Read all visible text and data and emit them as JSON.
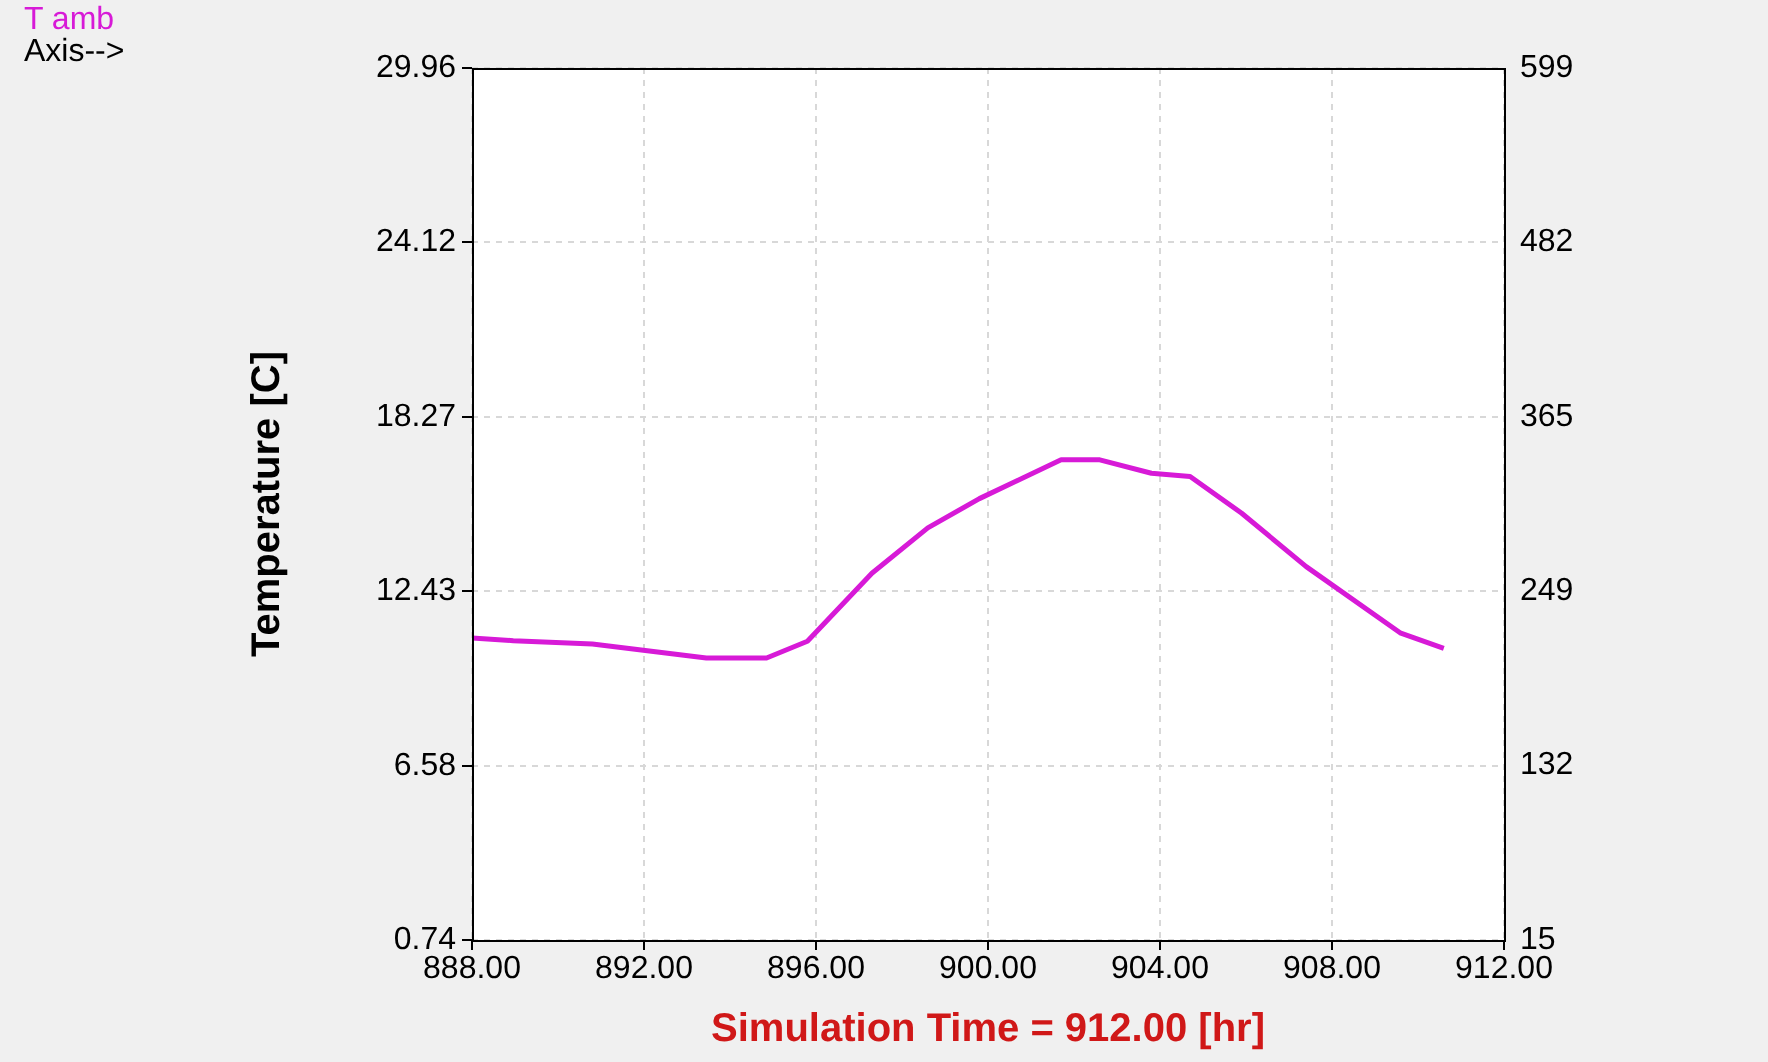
{
  "chart_data": {
    "type": "line",
    "xlabel": "Simulation Time = 912.00 [hr]",
    "ylabel": "Temperature [C]",
    "x": [
      888,
      888.96,
      890.8,
      893.45,
      894.85,
      895.8,
      897.3,
      898.6,
      899.8,
      901.7,
      902.6,
      903.8,
      904.7,
      905.9,
      907.4,
      909.6,
      910.6
    ],
    "series": [
      {
        "name": "T amb",
        "color": "#d71ad7",
        "values": [
          10.86,
          10.77,
          10.66,
          10.19,
          10.19,
          10.75,
          13.03,
          14.55,
          15.53,
          16.83,
          16.83,
          16.38,
          16.27,
          15.04,
          13.25,
          11.02,
          10.51
        ]
      }
    ],
    "xlim": [
      888,
      912
    ],
    "xticks": [
      {
        "value": 888,
        "label": "888.00"
      },
      {
        "value": 892,
        "label": "892.00"
      },
      {
        "value": 896,
        "label": "896.00"
      },
      {
        "value": 900,
        "label": "900.00"
      },
      {
        "value": 904,
        "label": "904.00"
      },
      {
        "value": 908,
        "label": "908.00"
      },
      {
        "value": 912,
        "label": "912.00"
      }
    ],
    "ylim": [
      0.74,
      29.96
    ],
    "yticks": [
      0.74,
      6.58,
      12.43,
      18.27,
      24.12,
      29.96
    ],
    "y2lim": [
      15,
      599
    ],
    "y2ticks": [
      15,
      {
        "value": 131.8,
        "label": "132"
      },
      {
        "value": 248.6,
        "label": "249"
      },
      {
        "value": 365.4,
        "label": "365"
      },
      {
        "value": 482.2,
        "label": "482"
      },
      599
    ],
    "annotations": [
      "Axis-->"
    ],
    "grid": true,
    "legend": "top left",
    "marker": "none",
    "line_style": "solid"
  }
}
